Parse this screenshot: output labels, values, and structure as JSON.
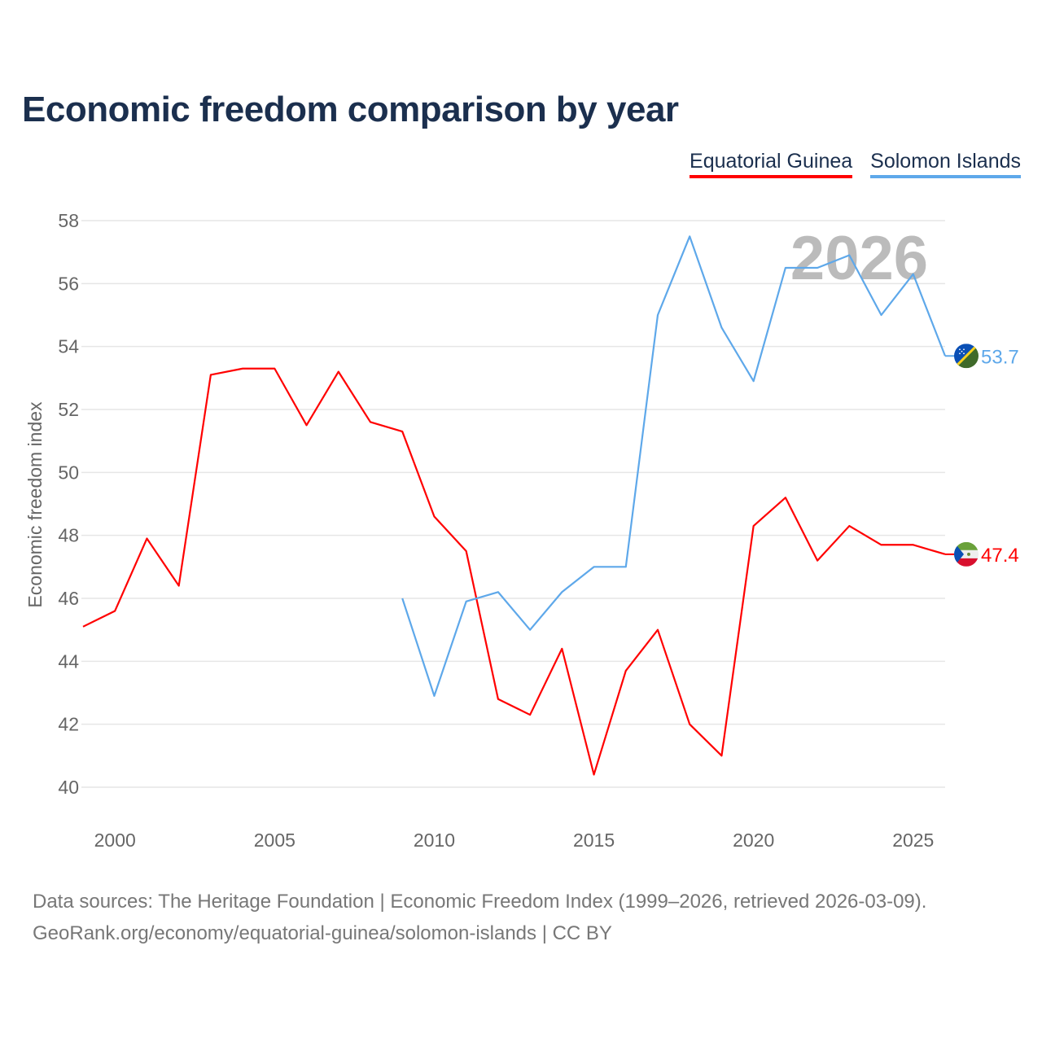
{
  "title": "Economic freedom comparison by year",
  "colors": {
    "eq": "#ff0000",
    "si": "#5ea8ea",
    "grid": "#e6e6e6",
    "watermark": "#bbbbbb"
  },
  "legend": [
    "Equatorial Guinea",
    "Solomon Islands"
  ],
  "watermark_year": "2026",
  "source_line1": "Data sources: The Heritage Foundation | Economic Freedom Index (1999–2026, retrieved 2026-03-09).",
  "source_line2": "GeoRank.org/economy/equatorial-guinea/solomon-islands | CC BY",
  "chart_data": {
    "type": "line",
    "title": "Economic freedom comparison by year",
    "xlabel": "",
    "ylabel": "Economic freedom index",
    "xlim": [
      1999,
      2026
    ],
    "ylim": [
      40,
      58
    ],
    "x_ticks": [
      2000,
      2005,
      2010,
      2015,
      2020,
      2025
    ],
    "y_ticks": [
      40,
      42,
      44,
      46,
      48,
      50,
      52,
      54,
      56,
      58
    ],
    "grid": true,
    "legend_position": "top-right",
    "series": [
      {
        "name": "Equatorial Guinea",
        "end_label": "47.4",
        "x": [
          1999,
          2000,
          2001,
          2002,
          2003,
          2004,
          2005,
          2006,
          2007,
          2008,
          2009,
          2010,
          2011,
          2012,
          2013,
          2014,
          2015,
          2016,
          2017,
          2018,
          2019,
          2020,
          2021,
          2022,
          2023,
          2024,
          2025,
          2026
        ],
        "values": [
          45.1,
          45.6,
          47.9,
          46.4,
          53.1,
          53.3,
          53.3,
          51.5,
          53.2,
          51.6,
          51.3,
          48.6,
          47.5,
          42.8,
          42.3,
          44.4,
          40.4,
          43.7,
          45.0,
          42.0,
          41.0,
          48.3,
          49.2,
          47.2,
          48.3,
          47.7,
          47.7,
          47.4
        ]
      },
      {
        "name": "Solomon Islands",
        "end_label": "53.7",
        "x": [
          2009,
          2010,
          2011,
          2012,
          2013,
          2014,
          2015,
          2016,
          2017,
          2018,
          2019,
          2020,
          2021,
          2022,
          2023,
          2024,
          2025,
          2026
        ],
        "values": [
          46.0,
          42.9,
          45.9,
          46.2,
          45.0,
          46.2,
          47.0,
          47.0,
          55.0,
          57.5,
          54.6,
          52.9,
          56.5,
          56.5,
          56.9,
          55.0,
          56.3,
          53.7
        ]
      }
    ]
  }
}
